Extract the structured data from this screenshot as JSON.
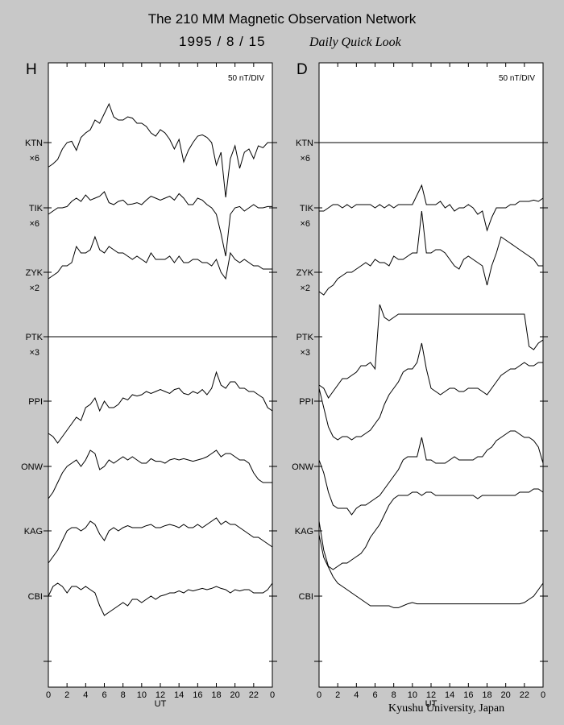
{
  "header": {
    "title": "The 210 MM Magnetic Observation Network",
    "date": "1995 / 8 / 15",
    "subtitle": "Daily Quick Look"
  },
  "footer": {
    "credit": "Kyushu University, Japan"
  },
  "chart_data": [
    {
      "type": "line",
      "panel": "H",
      "scale_label": "50 nT/DIV",
      "xlabel": "UT",
      "xlim": [
        0,
        24
      ],
      "x_ticks": [
        "0",
        "2",
        "4",
        "6",
        "8",
        "10",
        "12",
        "14",
        "16",
        "18",
        "20",
        "22",
        "0"
      ],
      "x_grid": [
        0,
        0.5,
        1,
        1.5,
        2,
        2.5,
        3,
        3.5,
        4,
        4.5,
        5,
        5.5,
        6,
        6.5,
        7,
        7.5,
        8,
        8.5,
        9,
        9.5,
        10,
        10.5,
        11,
        11.5,
        12,
        12.5,
        13,
        13.5,
        14,
        14.5,
        15,
        15.5,
        16,
        16.5,
        17,
        17.5,
        18,
        18.5,
        19,
        19.5,
        20,
        20.5,
        21,
        21.5,
        22,
        22.5,
        23,
        23.5,
        24
      ],
      "series": [
        {
          "name": "KTN",
          "multiplier": "×6",
          "values": [
            -0.38,
            -0.33,
            -0.26,
            -0.1,
            0.0,
            0.02,
            -0.12,
            0.08,
            0.15,
            0.2,
            0.35,
            0.3,
            0.45,
            0.6,
            0.4,
            0.35,
            0.35,
            0.4,
            0.38,
            0.3,
            0.3,
            0.25,
            0.15,
            0.1,
            0.2,
            0.15,
            0.05,
            -0.1,
            0.05,
            -0.3,
            -0.12,
            0.0,
            0.1,
            0.12,
            0.08,
            0.0,
            -0.35,
            -0.15,
            -0.85,
            -0.25,
            -0.05,
            -0.4,
            -0.15,
            -0.1,
            -0.25,
            -0.05,
            -0.08,
            0.0,
            0.0
          ]
        },
        {
          "name": "TIK",
          "multiplier": "×6",
          "values": [
            -0.1,
            -0.05,
            0.0,
            0.0,
            0.02,
            0.1,
            0.15,
            0.1,
            0.2,
            0.12,
            0.15,
            0.18,
            0.25,
            0.08,
            0.05,
            0.1,
            0.12,
            0.05,
            0.06,
            0.08,
            0.05,
            0.12,
            0.18,
            0.15,
            0.12,
            0.15,
            0.18,
            0.12,
            0.22,
            0.15,
            0.05,
            0.05,
            0.15,
            0.12,
            0.05,
            0.0,
            -0.1,
            -0.4,
            -0.75,
            -0.1,
            0.0,
            0.02,
            -0.05,
            0.0,
            0.05,
            0.0,
            0.0,
            0.02,
            0.02
          ]
        },
        {
          "name": "ZYK",
          "multiplier": "×2",
          "values": [
            -0.1,
            -0.05,
            0.0,
            0.1,
            0.1,
            0.15,
            0.4,
            0.3,
            0.3,
            0.35,
            0.55,
            0.35,
            0.3,
            0.4,
            0.35,
            0.3,
            0.3,
            0.25,
            0.2,
            0.25,
            0.2,
            0.15,
            0.3,
            0.2,
            0.2,
            0.2,
            0.25,
            0.15,
            0.25,
            0.15,
            0.15,
            0.2,
            0.2,
            0.15,
            0.15,
            0.1,
            0.2,
            0.0,
            -0.1,
            0.3,
            0.2,
            0.15,
            0.2,
            0.15,
            0.1,
            0.1,
            0.05,
            0.05,
            0.05
          ]
        },
        {
          "name": "PTK",
          "multiplier": "×3",
          "values": [
            0,
            0,
            0,
            0,
            0,
            0,
            0,
            0,
            0,
            0,
            0,
            0,
            0,
            0,
            0,
            0,
            0,
            0,
            0,
            0,
            0,
            0,
            0,
            0,
            0,
            0,
            0,
            0,
            0,
            0,
            0,
            0,
            0,
            0,
            0,
            0,
            0,
            0,
            0,
            0,
            0,
            0,
            0,
            0,
            0,
            0,
            0,
            0,
            0
          ]
        },
        {
          "name": "PPI",
          "multiplier": "",
          "values": [
            -0.5,
            -0.55,
            -0.65,
            -0.55,
            -0.45,
            -0.35,
            -0.25,
            -0.3,
            -0.1,
            -0.05,
            0.05,
            -0.15,
            0.0,
            -0.1,
            -0.1,
            -0.05,
            0.05,
            0.02,
            0.1,
            0.08,
            0.1,
            0.15,
            0.12,
            0.15,
            0.18,
            0.15,
            0.12,
            0.18,
            0.2,
            0.12,
            0.1,
            0.15,
            0.12,
            0.18,
            0.1,
            0.2,
            0.45,
            0.25,
            0.2,
            0.3,
            0.3,
            0.2,
            0.2,
            0.15,
            0.15,
            0.1,
            0.05,
            -0.1,
            -0.15
          ]
        },
        {
          "name": "ONW",
          "multiplier": "",
          "values": [
            -0.5,
            -0.4,
            -0.25,
            -0.1,
            0.0,
            0.05,
            0.1,
            0.0,
            0.1,
            0.25,
            0.2,
            -0.05,
            0.0,
            0.1,
            0.05,
            0.1,
            0.15,
            0.1,
            0.15,
            0.1,
            0.05,
            0.05,
            0.12,
            0.08,
            0.08,
            0.05,
            0.1,
            0.12,
            0.1,
            0.12,
            0.1,
            0.08,
            0.1,
            0.12,
            0.15,
            0.2,
            0.25,
            0.15,
            0.2,
            0.2,
            0.15,
            0.1,
            0.1,
            0.05,
            -0.1,
            -0.2,
            -0.25,
            -0.25,
            -0.25
          ]
        },
        {
          "name": "KAG",
          "multiplier": "",
          "values": [
            -0.5,
            -0.4,
            -0.3,
            -0.15,
            0.0,
            0.05,
            0.05,
            0.0,
            0.05,
            0.15,
            0.1,
            -0.05,
            -0.15,
            0.0,
            0.05,
            0.0,
            0.05,
            0.08,
            0.05,
            0.05,
            0.05,
            0.08,
            0.1,
            0.05,
            0.05,
            0.08,
            0.1,
            0.08,
            0.05,
            0.1,
            0.05,
            0.05,
            0.1,
            0.05,
            0.1,
            0.15,
            0.2,
            0.1,
            0.15,
            0.1,
            0.1,
            0.05,
            0.0,
            -0.05,
            -0.1,
            -0.1,
            -0.15,
            -0.2,
            -0.25
          ]
        },
        {
          "name": "CBI",
          "multiplier": "",
          "values": [
            0.0,
            0.15,
            0.2,
            0.15,
            0.05,
            0.15,
            0.15,
            0.1,
            0.15,
            0.1,
            0.05,
            -0.15,
            -0.3,
            -0.25,
            -0.2,
            -0.15,
            -0.1,
            -0.15,
            -0.05,
            -0.05,
            -0.1,
            -0.05,
            0.0,
            -0.05,
            0.0,
            0.02,
            0.05,
            0.05,
            0.08,
            0.05,
            0.1,
            0.08,
            0.1,
            0.12,
            0.1,
            0.12,
            0.15,
            0.12,
            0.1,
            0.05,
            0.1,
            0.08,
            0.1,
            0.1,
            0.05,
            0.05,
            0.05,
            0.1,
            0.2
          ]
        }
      ]
    },
    {
      "type": "line",
      "panel": "D",
      "scale_label": "50 nT/DIV",
      "xlabel": "UT",
      "xlim": [
        0,
        24
      ],
      "x_ticks": [
        "0",
        "2",
        "4",
        "6",
        "8",
        "10",
        "12",
        "14",
        "16",
        "18",
        "20",
        "22",
        "0"
      ],
      "x_grid": [
        0,
        0.5,
        1,
        1.5,
        2,
        2.5,
        3,
        3.5,
        4,
        4.5,
        5,
        5.5,
        6,
        6.5,
        7,
        7.5,
        8,
        8.5,
        9,
        9.5,
        10,
        10.5,
        11,
        11.5,
        12,
        12.5,
        13,
        13.5,
        14,
        14.5,
        15,
        15.5,
        16,
        16.5,
        17,
        17.5,
        18,
        18.5,
        19,
        19.5,
        20,
        20.5,
        21,
        21.5,
        22,
        22.5,
        23,
        23.5,
        24
      ],
      "series": [
        {
          "name": "KTN",
          "multiplier": "×6",
          "values": [
            0,
            0,
            0,
            0,
            0,
            0,
            0,
            0,
            0,
            0,
            0,
            0,
            0,
            0,
            0,
            0,
            0,
            0,
            0,
            0,
            0,
            0,
            0,
            0,
            0,
            0,
            0,
            0,
            0,
            0,
            0,
            0,
            0,
            0,
            0,
            0,
            0,
            0,
            0,
            0,
            0,
            0,
            0,
            0,
            0,
            0,
            0,
            0,
            0
          ]
        },
        {
          "name": "TIK",
          "multiplier": "×6",
          "values": [
            -0.05,
            -0.05,
            0.0,
            0.05,
            0.05,
            0.0,
            0.05,
            0.0,
            0.05,
            0.05,
            0.05,
            0.05,
            0.0,
            0.05,
            0.0,
            0.05,
            0.0,
            0.05,
            0.05,
            0.05,
            0.05,
            0.2,
            0.35,
            0.05,
            0.05,
            0.05,
            0.1,
            0.0,
            0.05,
            -0.05,
            0.0,
            0.0,
            0.05,
            0.0,
            -0.1,
            -0.05,
            -0.35,
            -0.15,
            0.0,
            0.0,
            0.0,
            0.05,
            0.05,
            0.1,
            0.1,
            0.1,
            0.12,
            0.1,
            0.15
          ]
        },
        {
          "name": "ZYK",
          "multiplier": "×2",
          "values": [
            -0.3,
            -0.35,
            -0.25,
            -0.2,
            -0.1,
            -0.05,
            0.0,
            0.0,
            0.05,
            0.1,
            0.15,
            0.1,
            0.2,
            0.15,
            0.15,
            0.1,
            0.25,
            0.2,
            0.2,
            0.25,
            0.3,
            0.3,
            0.95,
            0.3,
            0.3,
            0.35,
            0.35,
            0.3,
            0.2,
            0.1,
            0.05,
            0.2,
            0.25,
            0.2,
            0.15,
            0.1,
            -0.2,
            0.1,
            0.3,
            0.55,
            0.5,
            0.45,
            0.4,
            0.35,
            0.3,
            0.25,
            0.2,
            0.1,
            0.1
          ]
        },
        {
          "name": "PTK",
          "multiplier": "×3",
          "values": [
            -0.75,
            -0.8,
            -0.95,
            -0.85,
            -0.75,
            -0.65,
            -0.65,
            -0.6,
            -0.55,
            -0.45,
            -0.45,
            -0.4,
            -0.5,
            0.5,
            0.3,
            0.25,
            0.3,
            0.35,
            0.35,
            0.35,
            0.35,
            0.35,
            0.35,
            0.35,
            0.35,
            0.35,
            0.35,
            0.35,
            0.35,
            0.35,
            0.35,
            0.35,
            0.35,
            0.35,
            0.35,
            0.35,
            0.35,
            0.35,
            0.35,
            0.35,
            0.35,
            0.35,
            0.35,
            0.35,
            0.35,
            -0.15,
            -0.2,
            -0.1,
            -0.05
          ]
        },
        {
          "name": "PPI",
          "multiplier": "",
          "values": [
            0.2,
            -0.1,
            -0.4,
            -0.55,
            -0.6,
            -0.55,
            -0.55,
            -0.6,
            -0.55,
            -0.55,
            -0.5,
            -0.45,
            -0.35,
            -0.25,
            -0.05,
            0.1,
            0.2,
            0.3,
            0.45,
            0.5,
            0.5,
            0.6,
            0.9,
            0.5,
            0.2,
            0.15,
            0.1,
            0.15,
            0.2,
            0.2,
            0.15,
            0.15,
            0.2,
            0.2,
            0.2,
            0.15,
            0.1,
            0.2,
            0.3,
            0.4,
            0.45,
            0.5,
            0.5,
            0.55,
            0.6,
            0.55,
            0.55,
            0.6,
            0.6
          ]
        },
        {
          "name": "ONW",
          "multiplier": "",
          "values": [
            0.1,
            -0.1,
            -0.4,
            -0.6,
            -0.65,
            -0.65,
            -0.65,
            -0.75,
            -0.65,
            -0.6,
            -0.6,
            -0.55,
            -0.5,
            -0.45,
            -0.35,
            -0.25,
            -0.15,
            -0.05,
            0.1,
            0.15,
            0.15,
            0.15,
            0.45,
            0.1,
            0.1,
            0.05,
            0.05,
            0.05,
            0.1,
            0.15,
            0.1,
            0.1,
            0.1,
            0.1,
            0.15,
            0.15,
            0.25,
            0.3,
            0.4,
            0.45,
            0.5,
            0.55,
            0.55,
            0.5,
            0.45,
            0.45,
            0.4,
            0.3,
            0.05
          ]
        },
        {
          "name": "KAG",
          "multiplier": "",
          "values": [
            0.15,
            -0.3,
            -0.55,
            -0.6,
            -0.55,
            -0.5,
            -0.5,
            -0.45,
            -0.4,
            -0.35,
            -0.25,
            -0.1,
            0.0,
            0.1,
            0.25,
            0.4,
            0.5,
            0.55,
            0.55,
            0.55,
            0.6,
            0.6,
            0.55,
            0.6,
            0.6,
            0.55,
            0.55,
            0.55,
            0.55,
            0.55,
            0.55,
            0.55,
            0.55,
            0.55,
            0.5,
            0.55,
            0.55,
            0.55,
            0.55,
            0.55,
            0.55,
            0.55,
            0.55,
            0.6,
            0.6,
            0.6,
            0.65,
            0.65,
            0.6
          ]
        },
        {
          "name": "CBI",
          "multiplier": "",
          "values": [
            0.95,
            0.6,
            0.45,
            0.3,
            0.2,
            0.15,
            0.1,
            0.05,
            0.0,
            -0.05,
            -0.1,
            -0.15,
            -0.15,
            -0.15,
            -0.15,
            -0.15,
            -0.18,
            -0.18,
            -0.15,
            -0.12,
            -0.1,
            -0.12,
            -0.12,
            -0.12,
            -0.12,
            -0.12,
            -0.12,
            -0.12,
            -0.12,
            -0.12,
            -0.12,
            -0.12,
            -0.12,
            -0.12,
            -0.12,
            -0.12,
            -0.12,
            -0.12,
            -0.12,
            -0.12,
            -0.12,
            -0.12,
            -0.12,
            -0.12,
            -0.1,
            -0.05,
            0.0,
            0.1,
            0.2
          ]
        }
      ]
    }
  ]
}
